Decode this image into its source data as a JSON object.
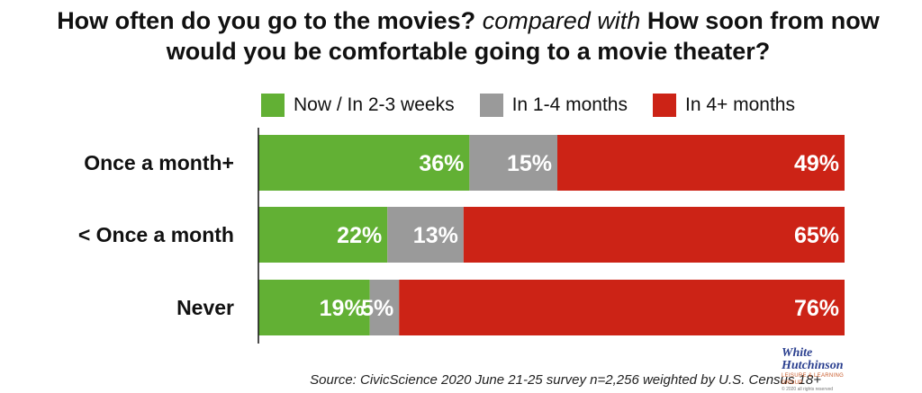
{
  "title": {
    "part1": "How often do you go to the movies?",
    "part2": "compared with",
    "part3": "How soon from now would you be comfortable going to a movie theater?"
  },
  "source": "Source: CivicScience 2020 June 21-25 survey n=2,256 weighted by U.S. Census 18+",
  "logo": {
    "line1": "White",
    "line2": "Hutchinson",
    "tagline": "LEISURE & LEARNING GROUP",
    "copyright": "© 2020 all rights reserved"
  },
  "colors": {
    "green": "#62b034",
    "gray": "#9a9a9a",
    "red": "#cc2316"
  },
  "chart_data": {
    "type": "bar",
    "orientation": "horizontal",
    "stacked": true,
    "percent": true,
    "categories": [
      "Once a month+",
      "< Once a month",
      "Never"
    ],
    "series": [
      {
        "name": "Now / In 2-3 weeks",
        "values": [
          36,
          22,
          19
        ],
        "color": "#62b034"
      },
      {
        "name": "In 1-4 months",
        "values": [
          15,
          13,
          5
        ],
        "color": "#9a9a9a"
      },
      {
        "name": "In 4+ months",
        "values": [
          49,
          65,
          76
        ],
        "color": "#cc2316"
      }
    ],
    "legend_position": "top",
    "grid": false,
    "xlim": [
      0,
      100
    ]
  }
}
